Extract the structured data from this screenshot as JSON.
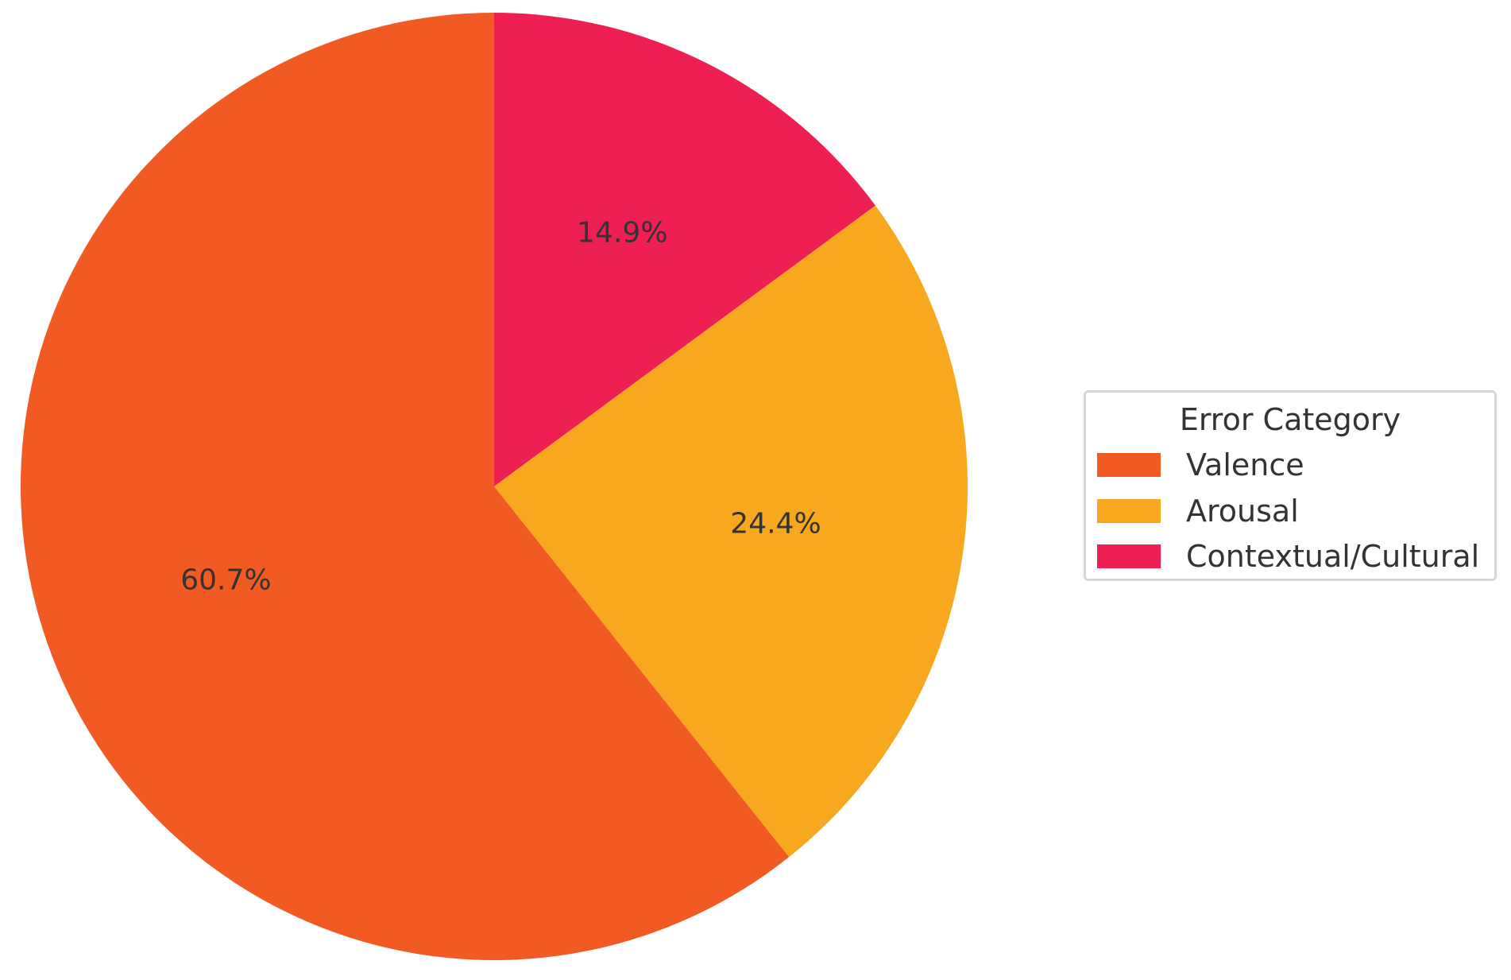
{
  "chart_data": {
    "type": "pie",
    "categories": [
      "Valence",
      "Arousal",
      "Contextual/Cultural"
    ],
    "values": [
      60.7,
      24.4,
      14.9
    ],
    "labels": [
      "60.7%",
      "24.4%",
      "14.9%"
    ],
    "colors": [
      "#f15a22",
      "#f7a81e",
      "#ed1f53"
    ],
    "start_angle": 90,
    "direction": "clockwise-from-top: Contextual/Cultural, Arousal, Valence",
    "legend": {
      "title": "Error Category",
      "placement": "right",
      "entries": [
        "Valence",
        "Arousal",
        "Contextual/Cultural"
      ]
    }
  }
}
